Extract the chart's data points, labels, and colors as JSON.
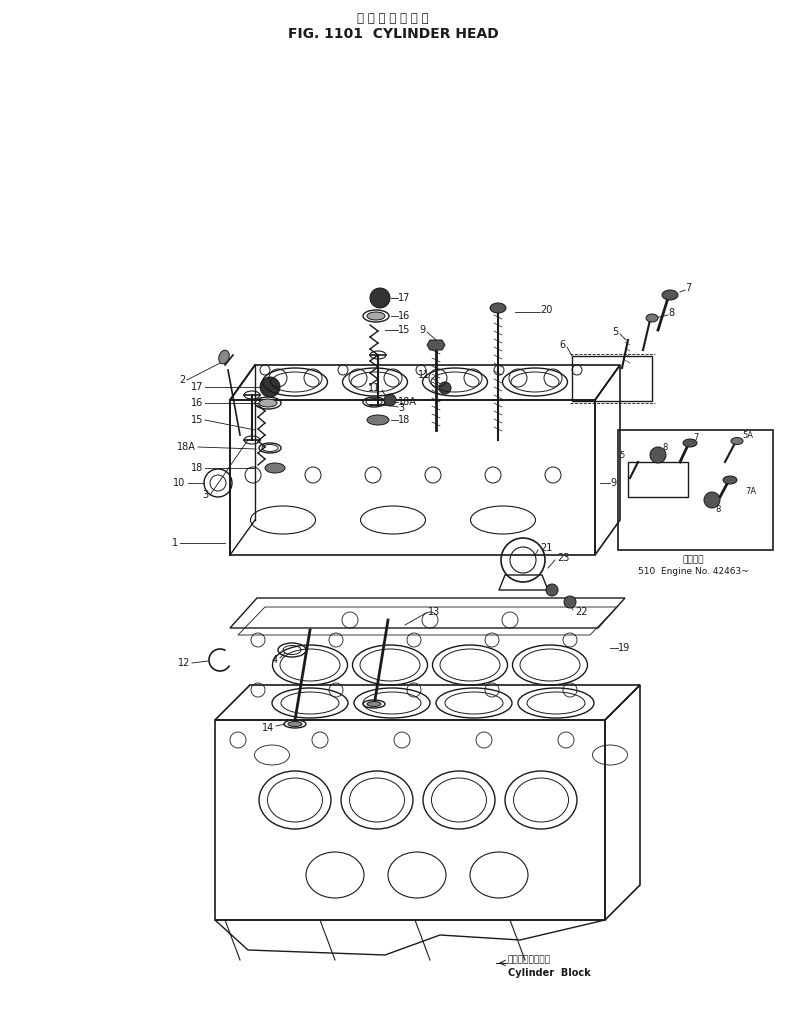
{
  "title_japanese": "シ リ ン ダ ヘ ッ ド",
  "title_english": "FIG. 1101  CYLINDER HEAD",
  "bg_color": "#ffffff",
  "line_color": "#1a1a1a",
  "figsize": [
    7.86,
    10.14
  ],
  "dpi": 100,
  "inset_note_line1": "適用番号",
  "inset_note_line2": "510  Engine No. 42463~",
  "cylinder_block_jp": "シリンダブロック",
  "cylinder_block_en": "Cylinder  Block"
}
